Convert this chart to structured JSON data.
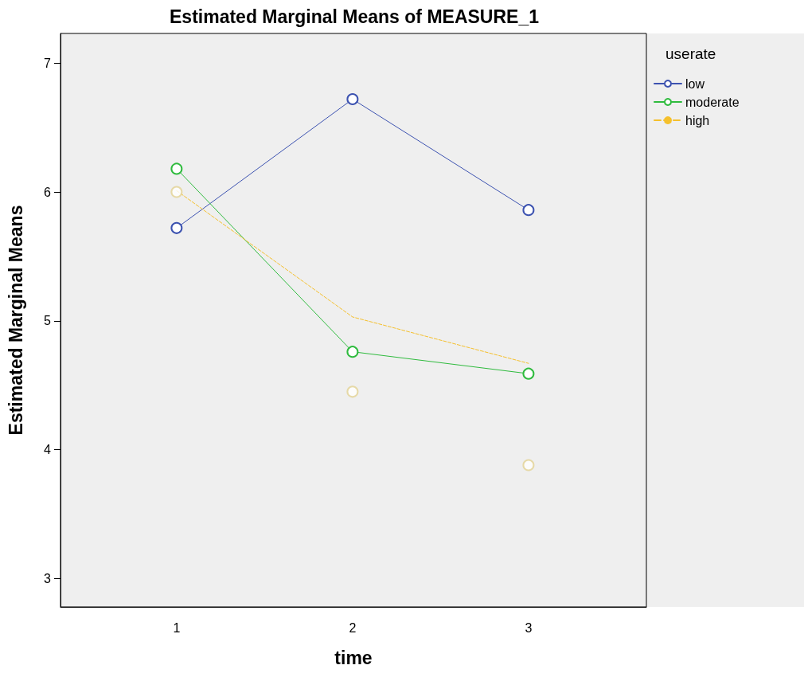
{
  "chart_data": {
    "type": "line",
    "title": "Estimated Marginal Means of MEASURE_1",
    "xlabel": "time",
    "ylabel": "Estimated Marginal Means",
    "legend_title": "userate",
    "legend": "top right",
    "grid": false,
    "x": [
      1,
      2,
      3
    ],
    "xlim": [
      0.34,
      3.67
    ],
    "xticks": [
      1,
      2,
      3
    ],
    "ylim": [
      2.78,
      7.23
    ],
    "yticks": [
      3,
      4,
      5,
      6,
      7
    ],
    "series": [
      {
        "name": "low",
        "color": "#3c52b0",
        "values": [
          5.72,
          6.72,
          5.86
        ],
        "marker": "circle",
        "line_style": "solid"
      },
      {
        "name": "moderate",
        "color": "#2fbb3e",
        "values": [
          6.18,
          4.76,
          4.59
        ],
        "marker": "circle",
        "line_style": "solid"
      },
      {
        "name": "high",
        "color": "#f5c02c",
        "values": [
          6.01,
          5.03,
          4.67
        ],
        "marker": "none",
        "line_style": "dashed"
      },
      {
        "type": "scatter",
        "color": "#e2d294",
        "values": [
          6.0,
          4.45,
          3.88
        ],
        "marker": "circle"
      }
    ]
  }
}
